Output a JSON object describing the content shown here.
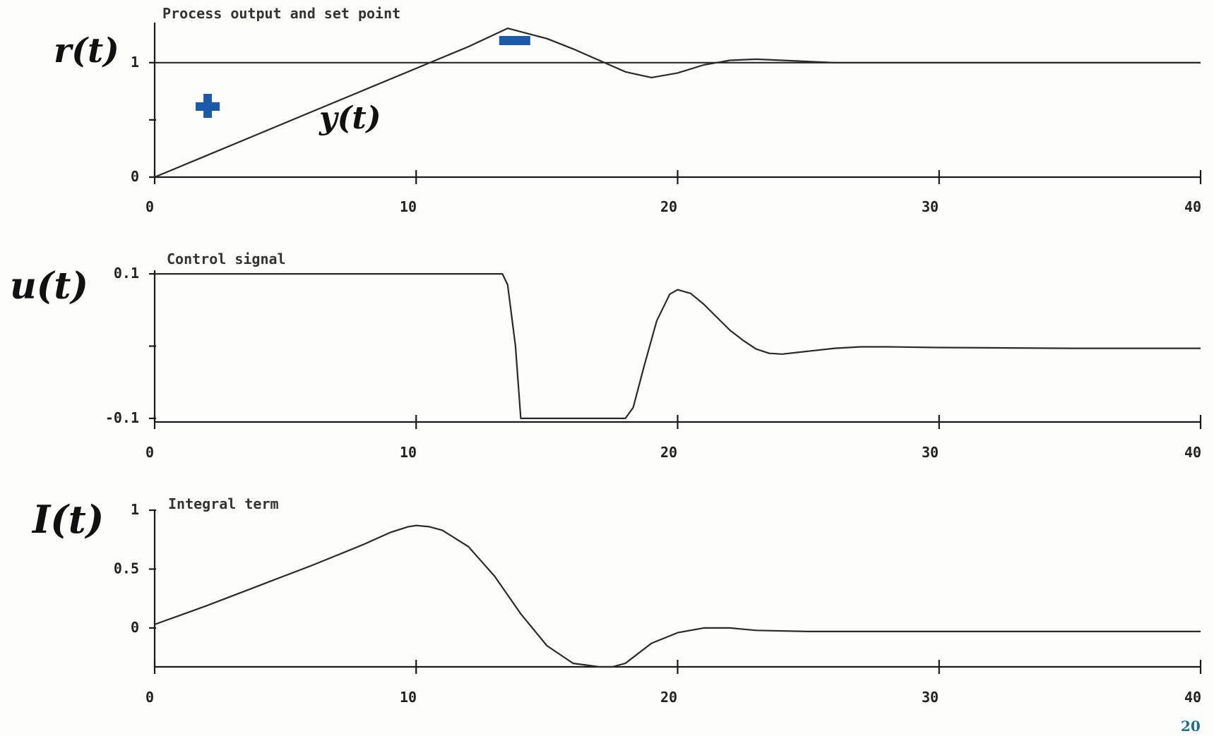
{
  "chart_data": [
    {
      "type": "line",
      "title": "Process output and set point",
      "side_labels": [
        "r(t)",
        "y(t)"
      ],
      "xlim": [
        0,
        40
      ],
      "ylim": [
        0,
        1.35
      ],
      "xticks": [
        "0",
        "10",
        "20",
        "30",
        "40"
      ],
      "yticks": [
        {
          "value": 0,
          "label": "0"
        },
        {
          "value": 0.5,
          "label": ""
        },
        {
          "value": 1,
          "label": "1"
        }
      ],
      "series": [
        {
          "name": "r(t)",
          "x": [
            0,
            40
          ],
          "y": [
            1,
            1
          ]
        },
        {
          "name": "y(t)",
          "x": [
            0,
            2,
            4,
            6,
            8,
            10,
            12,
            13.5,
            15,
            16,
            17,
            18,
            19,
            20,
            21,
            22,
            23,
            24,
            26,
            30,
            35,
            40
          ],
          "y": [
            0,
            0.19,
            0.38,
            0.57,
            0.76,
            0.95,
            1.14,
            1.3,
            1.21,
            1.12,
            1.02,
            0.92,
            0.87,
            0.91,
            0.98,
            1.02,
            1.03,
            1.02,
            1.0,
            1.0,
            1.0,
            1.0
          ]
        }
      ],
      "annotations": [
        {
          "symbol": "+",
          "color": "#1a5aa8",
          "near_x": 2
        },
        {
          "symbol": "−",
          "color": "#1a5aa8",
          "near_x": 13.5
        }
      ]
    },
    {
      "type": "line",
      "title": "Control signal",
      "side_labels": [
        "u(t)"
      ],
      "xlim": [
        0,
        40
      ],
      "ylim": [
        -0.105,
        0.105
      ],
      "xticks": [
        "0",
        "10",
        "20",
        "30",
        "40"
      ],
      "yticks": [
        {
          "value": 0.1,
          "label": "0.1"
        },
        {
          "value": 0,
          "label": ""
        },
        {
          "value": -0.1,
          "label": "-0.1"
        }
      ],
      "series": [
        {
          "name": "u(t)",
          "x": [
            0,
            13.3,
            13.5,
            13.8,
            14.0,
            18.0,
            18.3,
            18.7,
            19.2,
            19.7,
            20.0,
            20.5,
            21.0,
            21.5,
            22.0,
            22.5,
            23.0,
            23.5,
            24.0,
            25.0,
            26.0,
            27.0,
            28.0,
            30.0,
            35.0,
            40.0
          ],
          "y": [
            0.1,
            0.1,
            0.085,
            0.0,
            -0.1,
            -0.1,
            -0.085,
            -0.03,
            0.035,
            0.072,
            0.078,
            0.073,
            0.058,
            0.04,
            0.022,
            0.008,
            -0.004,
            -0.01,
            -0.011,
            -0.007,
            -0.003,
            -0.001,
            -0.001,
            -0.002,
            -0.003,
            -0.003
          ]
        }
      ]
    },
    {
      "type": "line",
      "title": "Integral term",
      "side_labels": [
        "I(t)"
      ],
      "xlim": [
        0,
        40
      ],
      "ylim": [
        -0.33,
        1.0
      ],
      "xticks": [
        "0",
        "10",
        "20",
        "30",
        "40"
      ],
      "yticks": [
        {
          "value": 1,
          "label": "1"
        },
        {
          "value": 0.5,
          "label": "0.5"
        },
        {
          "value": 0,
          "label": "0"
        }
      ],
      "series": [
        {
          "name": "I(t)",
          "x": [
            0,
            2,
            4,
            6,
            8,
            9,
            9.7,
            10.0,
            10.5,
            11.0,
            12.0,
            13.0,
            14.0,
            15.0,
            16.0,
            17.0,
            17.5,
            18.0,
            19.0,
            20.0,
            21.0,
            22.0,
            23.0,
            25.0,
            30.0,
            35.0,
            40.0
          ],
          "y": [
            0.03,
            0.19,
            0.36,
            0.53,
            0.71,
            0.81,
            0.86,
            0.87,
            0.86,
            0.83,
            0.69,
            0.44,
            0.12,
            -0.15,
            -0.3,
            -0.33,
            -0.33,
            -0.3,
            -0.13,
            -0.04,
            0.0,
            0.0,
            -0.02,
            -0.03,
            -0.03,
            -0.03,
            -0.03
          ]
        }
      ]
    }
  ],
  "page_number": "20"
}
